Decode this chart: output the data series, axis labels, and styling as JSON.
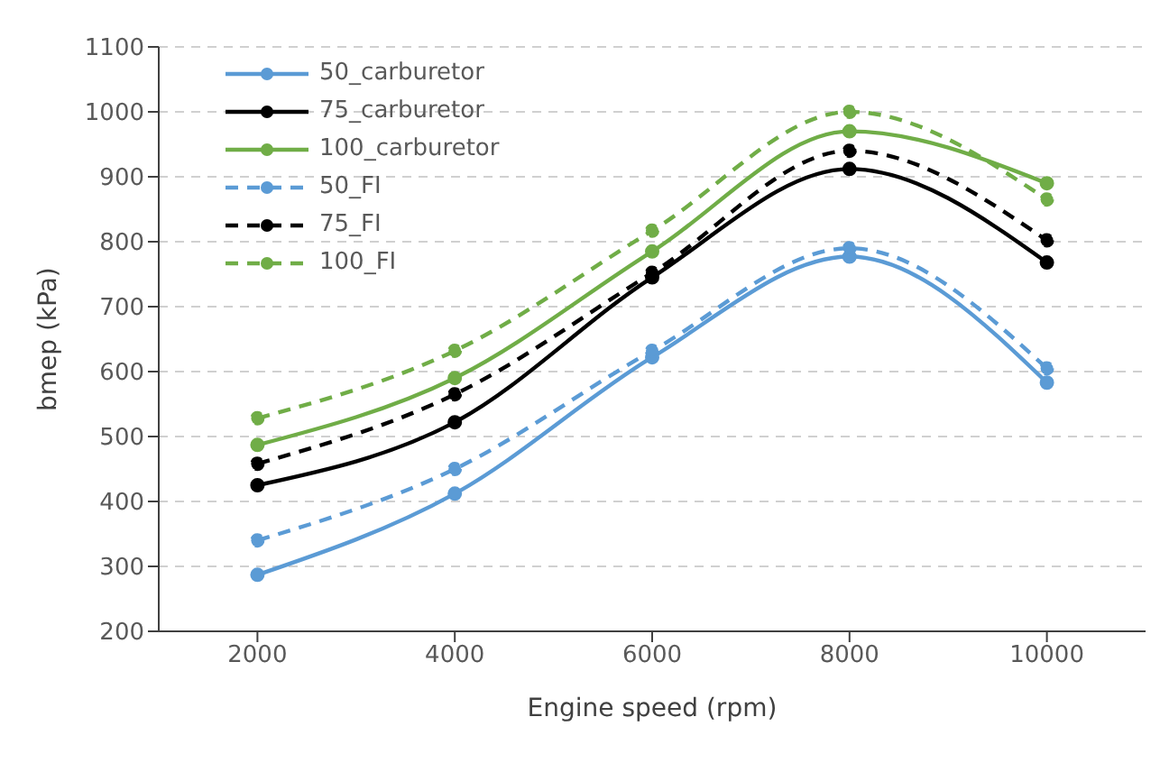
{
  "chart_data": {
    "type": "line",
    "xlabel": "Engine speed (rpm)",
    "ylabel": "bmep (kPa)",
    "x": [
      2000,
      4000,
      6000,
      8000,
      10000
    ],
    "xlim": [
      1000,
      11000
    ],
    "xticks": [
      2000,
      4000,
      6000,
      8000,
      10000
    ],
    "ylim": [
      200,
      1100
    ],
    "yticks": [
      200,
      300,
      400,
      500,
      600,
      700,
      800,
      900,
      1000,
      1100
    ],
    "grid": "y",
    "legend": "top left",
    "marker": "circle",
    "series": [
      {
        "name": "50_carburetor",
        "color": "#5b9bd5",
        "line_style": "solid",
        "values": [
          287,
          412,
          622,
          777,
          583
        ]
      },
      {
        "name": "75_carburetor",
        "color": "#000000",
        "line_style": "solid",
        "values": [
          425,
          522,
          745,
          912,
          768
        ]
      },
      {
        "name": "100_carburetor",
        "color": "#70ad47",
        "line_style": "solid",
        "values": [
          487,
          590,
          785,
          970,
          890
        ]
      },
      {
        "name": "50_FI",
        "color": "#5b9bd5",
        "line_style": "dashed",
        "values": [
          340,
          450,
          632,
          790,
          605
        ]
      },
      {
        "name": "75_FI",
        "color": "#000000",
        "line_style": "dashed",
        "values": [
          458,
          565,
          752,
          940,
          802
        ]
      },
      {
        "name": "100_FI",
        "color": "#70ad47",
        "line_style": "dashed",
        "values": [
          528,
          632,
          817,
          1000,
          865
        ]
      }
    ]
  }
}
